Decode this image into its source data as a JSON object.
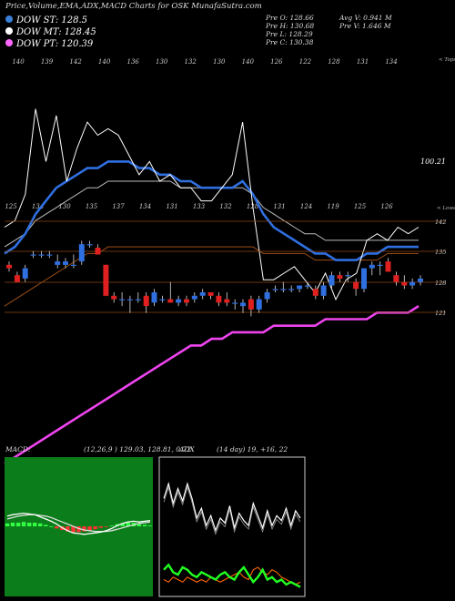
{
  "header": {
    "title": "Price,Volume,EMA,ADX,MACD Charts for OSK MunafaSutra.com",
    "legend": [
      {
        "label": "DOW ST: 128.5",
        "color": "#3a7fd8"
      },
      {
        "label": "DOW MT: 128.45",
        "color": "#ffffff"
      },
      {
        "label": "DOW PT: 120.39",
        "color": "#ff66ff"
      }
    ],
    "prev": [
      "Pre   O: 128.66",
      "Pre   H: 130.68",
      "Pre   L: 128.29",
      "Pre   C: 130.38"
    ],
    "volume": [
      "Avg V: 0.941 M",
      "Pre   V: 1.646  M"
    ]
  },
  "colors": {
    "up": "#2f6fe0",
    "down": "#e02020",
    "ema_short": "#2f6fe0",
    "ema_long": "#8b4513",
    "ema_mid": "#bbbbbb",
    "ema_pt": "#ee44ee",
    "price_line": "#ffffff",
    "level_line": "#8b4513",
    "macd_bg": "#0b7d1a",
    "adx_bg": "#000000"
  },
  "chart_data": [
    {
      "type": "line",
      "name": "price-ema-panel",
      "top_scale_labels": [
        "140",
        "139",
        "142",
        "140",
        "136",
        "130",
        "132",
        "130",
        "140",
        "126",
        "122",
        "128",
        "131",
        "134"
      ],
      "top_scale_tag": "< Tops",
      "low_scale_labels": [
        "125",
        "134",
        "130",
        "135",
        "137",
        "134",
        "131",
        "133",
        "132",
        "128",
        "131",
        "124",
        "119",
        "125",
        "126"
      ],
      "low_scale_tag": "< Lows",
      "price_label": "100.21",
      "ylim": [
        117,
        145
      ],
      "price": [
        124,
        125,
        129,
        142,
        134,
        141,
        131,
        136,
        140,
        138,
        139,
        138,
        135,
        132,
        134,
        131,
        132,
        130,
        130,
        128,
        128,
        130,
        132,
        140,
        127,
        116,
        116,
        117,
        118,
        116,
        114,
        117,
        113,
        116,
        117,
        122,
        123,
        122,
        124,
        123,
        124
      ],
      "ema_short": [
        120,
        121,
        123,
        126,
        128,
        130,
        131,
        132,
        133,
        133,
        134,
        134,
        134,
        133,
        133,
        132,
        132,
        131,
        131,
        130,
        130,
        130,
        130,
        131,
        129,
        126,
        124,
        123,
        122,
        121,
        120,
        120,
        119,
        119,
        119,
        120,
        120,
        121,
        121,
        121,
        121
      ],
      "ema_mid": [
        121,
        122,
        123,
        125,
        126,
        127,
        128,
        129,
        130,
        130,
        131,
        131,
        131,
        131,
        131,
        131,
        131,
        130,
        130,
        130,
        130,
        130,
        130,
        130,
        129,
        127,
        126,
        125,
        124,
        123,
        123,
        122,
        122,
        122,
        122,
        122,
        122,
        122,
        122,
        122,
        122
      ],
      "ema_long": [
        112,
        113,
        114,
        115,
        116,
        117,
        118,
        119,
        120,
        120,
        121,
        121,
        121,
        121,
        121,
        121,
        121,
        121,
        121,
        121,
        121,
        121,
        121,
        121,
        121,
        120,
        120,
        120,
        120,
        120,
        119,
        119,
        119,
        119,
        119,
        119,
        119,
        120,
        120,
        120,
        120
      ],
      "ema_pt": [
        88,
        89,
        90,
        91,
        92,
        93,
        94,
        95,
        96,
        97,
        98,
        99,
        100,
        101,
        102,
        103,
        104,
        105,
        106,
        106,
        107,
        107,
        108,
        108,
        108,
        108,
        109,
        109,
        109,
        109,
        109,
        110,
        110,
        110,
        110,
        110,
        111,
        111,
        111,
        111,
        112
      ]
    },
    {
      "type": "candlestick",
      "name": "candle-panel",
      "levels": [
        "142",
        "135",
        "128",
        "121"
      ],
      "ylim": [
        117,
        148
      ],
      "candles": [
        {
          "o": 134,
          "h": 135,
          "l": 132,
          "c": 133
        },
        {
          "o": 131,
          "h": 132,
          "l": 129,
          "c": 129
        },
        {
          "o": 130,
          "h": 134,
          "l": 129,
          "c": 133
        },
        {
          "o": 137,
          "h": 138,
          "l": 136,
          "c": 137
        },
        {
          "o": 137,
          "h": 138,
          "l": 136,
          "c": 137
        },
        {
          "o": 137,
          "h": 138,
          "l": 136,
          "c": 137
        },
        {
          "o": 134,
          "h": 137,
          "l": 133,
          "c": 135
        },
        {
          "o": 134,
          "h": 136,
          "l": 133,
          "c": 135
        },
        {
          "o": 134,
          "h": 137,
          "l": 133,
          "c": 134
        },
        {
          "o": 135,
          "h": 141,
          "l": 134,
          "c": 140
        },
        {
          "o": 140,
          "h": 141,
          "l": 139,
          "c": 140
        },
        {
          "o": 139,
          "h": 140,
          "l": 137,
          "c": 137
        },
        {
          "o": 134,
          "h": 134,
          "l": 125,
          "c": 125
        },
        {
          "o": 125,
          "h": 126,
          "l": 123,
          "c": 124
        },
        {
          "o": 124,
          "h": 126,
          "l": 122,
          "c": 124
        },
        {
          "o": 124,
          "h": 125,
          "l": 120,
          "c": 124
        },
        {
          "o": 124,
          "h": 126,
          "l": 123,
          "c": 124
        },
        {
          "o": 125,
          "h": 126,
          "l": 120,
          "c": 122
        },
        {
          "o": 123,
          "h": 127,
          "l": 122,
          "c": 126
        },
        {
          "o": 124,
          "h": 125,
          "l": 123,
          "c": 124
        },
        {
          "o": 124,
          "h": 129,
          "l": 123,
          "c": 123
        },
        {
          "o": 123,
          "h": 125,
          "l": 122,
          "c": 124
        },
        {
          "o": 124,
          "h": 125,
          "l": 122,
          "c": 123
        },
        {
          "o": 124,
          "h": 126,
          "l": 123,
          "c": 125
        },
        {
          "o": 125,
          "h": 127,
          "l": 124,
          "c": 126
        },
        {
          "o": 126,
          "h": 126,
          "l": 124,
          "c": 125
        },
        {
          "o": 125,
          "h": 126,
          "l": 122,
          "c": 123
        },
        {
          "o": 124,
          "h": 126,
          "l": 122,
          "c": 123
        },
        {
          "o": 123,
          "h": 124,
          "l": 121,
          "c": 123
        },
        {
          "o": 122,
          "h": 124,
          "l": 120,
          "c": 123
        },
        {
          "o": 124,
          "h": 125,
          "l": 119,
          "c": 121
        },
        {
          "o": 121,
          "h": 125,
          "l": 120,
          "c": 124
        },
        {
          "o": 124,
          "h": 127,
          "l": 123,
          "c": 126
        },
        {
          "o": 127,
          "h": 128,
          "l": 126,
          "c": 127
        },
        {
          "o": 127,
          "h": 129,
          "l": 126,
          "c": 127
        },
        {
          "o": 127,
          "h": 128,
          "l": 126,
          "c": 127
        },
        {
          "o": 127,
          "h": 128,
          "l": 126,
          "c": 128
        },
        {
          "o": 128,
          "h": 129,
          "l": 127,
          "c": 128
        },
        {
          "o": 127,
          "h": 128,
          "l": 124,
          "c": 125
        },
        {
          "o": 125,
          "h": 129,
          "l": 124,
          "c": 128
        },
        {
          "o": 128,
          "h": 132,
          "l": 127,
          "c": 131
        },
        {
          "o": 131,
          "h": 132,
          "l": 129,
          "c": 130
        },
        {
          "o": 131,
          "h": 132,
          "l": 129,
          "c": 131
        },
        {
          "o": 129,
          "h": 130,
          "l": 125,
          "c": 127
        },
        {
          "o": 127,
          "h": 133,
          "l": 126,
          "c": 133
        },
        {
          "o": 133,
          "h": 135,
          "l": 131,
          "c": 134
        },
        {
          "o": 134,
          "h": 135,
          "l": 131,
          "c": 134
        },
        {
          "o": 135,
          "h": 136,
          "l": 132,
          "c": 132
        },
        {
          "o": 131,
          "h": 132,
          "l": 128,
          "c": 129
        },
        {
          "o": 129,
          "h": 131,
          "l": 127,
          "c": 128
        },
        {
          "o": 128,
          "h": 130,
          "l": 127,
          "c": 129
        },
        {
          "o": 129,
          "h": 131,
          "l": 128,
          "c": 130
        }
      ]
    },
    {
      "type": "line",
      "name": "macd-panel",
      "header": "MACD:",
      "values_text": "(12,26,9 ) 129.03,  128.81,  0.72",
      "ylim": [
        -3,
        3
      ],
      "macd": [
        1.4,
        1.6,
        1.7,
        1.8,
        1.7,
        1.6,
        1.3,
        1.0,
        0.7,
        0.3,
        -0.2,
        -0.6,
        -0.9,
        -1.0,
        -1.1,
        -1.0,
        -0.9,
        -0.8,
        -0.6,
        -0.3,
        0.1,
        0.4,
        0.6,
        0.7,
        0.6,
        0.7,
        0.8
      ],
      "signal": [
        1.0,
        1.2,
        1.4,
        1.5,
        1.6,
        1.6,
        1.5,
        1.4,
        1.2,
        0.9,
        0.6,
        0.3,
        0.0,
        -0.3,
        -0.5,
        -0.6,
        -0.7,
        -0.7,
        -0.7,
        -0.6,
        -0.4,
        -0.2,
        0.0,
        0.2,
        0.4,
        0.5,
        0.6
      ],
      "histogram": [
        0.4,
        0.5,
        0.5,
        0.6,
        0.5,
        0.5,
        0.4,
        0.2,
        0.0,
        -0.3,
        -0.5,
        -0.7,
        -0.8,
        -0.8,
        -0.7,
        -0.6,
        -0.4,
        -0.2,
        -0.1,
        0.1,
        0.3,
        0.4,
        0.5,
        0.5,
        0.3,
        0.2,
        0.1
      ]
    },
    {
      "type": "line",
      "name": "adx-panel",
      "header": "ADX",
      "values_text": "(14  day) 19,  +16,  22",
      "ylim": [
        0,
        50
      ],
      "adx": [
        38,
        44,
        36,
        42,
        37,
        44,
        38,
        30,
        34,
        27,
        31,
        25,
        30,
        28,
        35,
        26,
        32,
        29,
        27,
        36,
        31,
        26,
        33,
        27,
        31,
        29,
        34,
        27,
        33,
        30
      ],
      "plus_di": [
        9,
        11,
        8,
        7,
        10,
        9,
        7,
        6,
        8,
        7,
        6,
        5,
        7,
        8,
        6,
        5,
        8,
        10,
        7,
        4,
        6,
        9,
        5,
        6,
        4,
        5,
        3,
        4,
        3,
        2
      ],
      "minus_di": [
        5,
        4,
        6,
        5,
        4,
        6,
        5,
        4,
        5,
        4,
        6,
        5,
        4,
        5,
        6,
        7,
        8,
        6,
        5,
        9,
        10,
        8,
        7,
        9,
        8,
        6,
        5,
        4,
        3,
        4
      ]
    }
  ]
}
